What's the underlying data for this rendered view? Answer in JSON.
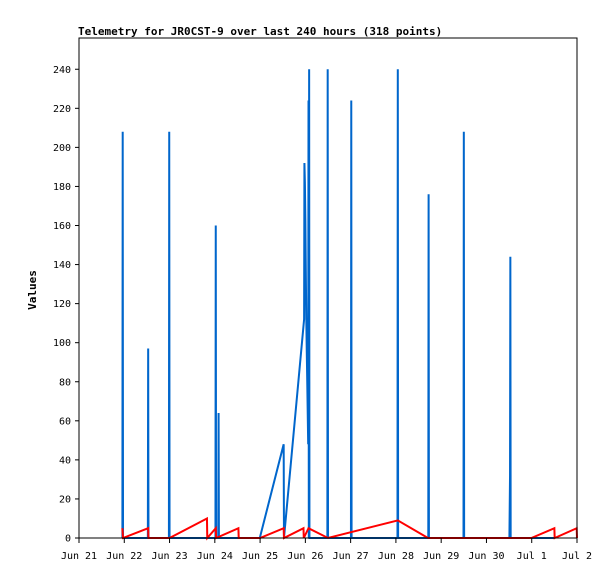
{
  "chart_data": {
    "type": "line",
    "title": "Telemetry for JR0CST-9 over last 240 hours (318 points)",
    "xlabel": "",
    "ylabel": "Values",
    "xlim": [
      "2024-06-21T00:00",
      "2024-07-02T00:00"
    ],
    "ylim": [
      0,
      256
    ],
    "x_ticks": [
      {
        "x": "2024-06-21T00:00",
        "label": "Jun 21"
      },
      {
        "x": "2024-06-22T00:00",
        "label": "Jun 22"
      },
      {
        "x": "2024-06-23T00:00",
        "label": "Jun 23"
      },
      {
        "x": "2024-06-24T00:00",
        "label": "Jun 24"
      },
      {
        "x": "2024-06-25T00:00",
        "label": "Jun 25"
      },
      {
        "x": "2024-06-26T00:00",
        "label": "Jun 26"
      },
      {
        "x": "2024-06-27T00:00",
        "label": "Jun 27"
      },
      {
        "x": "2024-06-28T00:00",
        "label": "Jun 28"
      },
      {
        "x": "2024-06-29T00:00",
        "label": "Jun 29"
      },
      {
        "x": "2024-06-30T00:00",
        "label": "Jun 30"
      },
      {
        "x": "2024-07-01T00:00",
        "label": "Jul 1"
      },
      {
        "x": "2024-07-02T00:00",
        "label": "Jul 2"
      }
    ],
    "y_ticks": [
      0,
      20,
      40,
      60,
      80,
      100,
      120,
      140,
      160,
      180,
      200,
      220,
      240
    ],
    "grid": false,
    "legend": "none",
    "series": [
      {
        "color": "#0066cc",
        "points": [
          [
            "2024-06-21T23:00",
            0
          ],
          [
            "2024-06-21T23:10",
            208
          ],
          [
            "2024-06-21T23:20",
            0
          ],
          [
            "2024-06-22T12:30",
            0
          ],
          [
            "2024-06-22T12:40",
            97
          ],
          [
            "2024-06-22T12:50",
            0
          ],
          [
            "2024-06-22T23:40",
            0
          ],
          [
            "2024-06-22T23:50",
            208
          ],
          [
            "2024-06-23T00:00",
            0
          ],
          [
            "2024-06-24T00:20",
            0
          ],
          [
            "2024-06-24T00:30",
            160
          ],
          [
            "2024-06-24T00:40",
            0
          ],
          [
            "2024-06-24T01:50",
            0
          ],
          [
            "2024-06-24T02:00",
            64
          ],
          [
            "2024-06-24T02:10",
            0
          ],
          [
            "2024-06-24T23:50",
            0
          ],
          [
            "2024-06-25T12:30",
            48
          ],
          [
            "2024-06-25T12:40",
            0
          ],
          [
            "2024-06-25T23:20",
            112
          ],
          [
            "2024-06-25T23:30",
            192
          ],
          [
            "2024-06-25T23:45",
            182
          ],
          [
            "2024-06-26T00:00",
            163
          ],
          [
            "2024-06-26T00:10",
            144
          ],
          [
            "2024-06-26T00:20",
            127
          ],
          [
            "2024-06-26T00:30",
            112
          ],
          [
            "2024-06-26T00:45",
            95
          ],
          [
            "2024-06-26T01:00",
            80
          ],
          [
            "2024-06-26T01:15",
            64
          ],
          [
            "2024-06-26T01:30",
            48
          ],
          [
            "2024-06-26T01:40",
            224
          ],
          [
            "2024-06-26T01:50",
            0
          ],
          [
            "2024-06-26T02:00",
            240
          ],
          [
            "2024-06-26T02:10",
            0
          ],
          [
            "2024-06-26T11:40",
            0
          ],
          [
            "2024-06-26T11:50",
            240
          ],
          [
            "2024-06-26T12:00",
            0
          ],
          [
            "2024-06-27T00:10",
            0
          ],
          [
            "2024-06-27T00:20",
            224
          ],
          [
            "2024-06-27T00:30",
            0
          ],
          [
            "2024-06-28T00:50",
            0
          ],
          [
            "2024-06-28T01:00",
            240
          ],
          [
            "2024-06-28T01:10",
            0
          ],
          [
            "2024-06-28T17:10",
            0
          ],
          [
            "2024-06-28T17:20",
            176
          ],
          [
            "2024-06-28T17:30",
            0
          ],
          [
            "2024-06-29T11:50",
            0
          ],
          [
            "2024-06-29T12:00",
            208
          ],
          [
            "2024-06-29T12:10",
            0
          ],
          [
            "2024-06-30T12:10",
            0
          ],
          [
            "2024-06-30T12:20",
            16
          ],
          [
            "2024-06-30T12:30",
            32
          ],
          [
            "2024-06-30T12:40",
            144
          ],
          [
            "2024-06-30T12:50",
            0
          ],
          [
            "2024-06-31T00:00",
            0
          ],
          [
            "2024-07-01T12:00",
            0
          ]
        ]
      },
      {
        "color": "#ff0000",
        "points": [
          [
            "2024-06-21T23:00",
            5
          ],
          [
            "2024-06-21T23:20",
            0
          ],
          [
            "2024-06-22T12:40",
            5
          ],
          [
            "2024-06-22T12:50",
            0
          ],
          [
            "2024-06-23T00:00",
            0
          ],
          [
            "2024-06-23T19:50",
            10
          ],
          [
            "2024-06-23T20:00",
            0
          ],
          [
            "2024-06-24T00:30",
            5
          ],
          [
            "2024-06-24T00:40",
            0
          ],
          [
            "2024-06-24T12:30",
            5
          ],
          [
            "2024-06-24T12:40",
            0
          ],
          [
            "2024-06-25T00:00",
            0
          ],
          [
            "2024-06-25T12:30",
            5
          ],
          [
            "2024-06-25T12:40",
            0
          ],
          [
            "2024-06-25T23:00",
            5
          ],
          [
            "2024-06-25T23:10",
            0
          ],
          [
            "2024-06-26T01:40",
            5
          ],
          [
            "2024-06-26T12:00",
            0
          ],
          [
            "2024-06-28T01:00",
            9
          ],
          [
            "2024-06-28T17:00",
            0
          ],
          [
            "2024-06-30T23:50",
            0
          ],
          [
            "2024-07-01T12:00",
            5
          ],
          [
            "2024-07-01T12:10",
            0
          ],
          [
            "2024-07-01T23:50",
            5
          ],
          [
            "2024-07-02T00:00",
            0
          ]
        ]
      }
    ]
  }
}
